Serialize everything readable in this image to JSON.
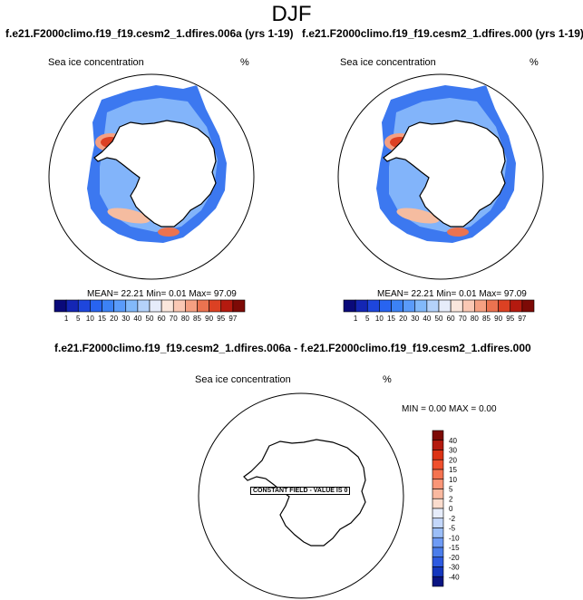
{
  "title": "DJF",
  "panels": [
    {
      "case": "f.e21.F2000climo.f19_f19.cesm2_1.dfires.006a (yrs 1-19)",
      "variable": "Sea ice concentration",
      "units": "%",
      "mean_label": "MEAN=",
      "mean": "22.21",
      "min_label": "Min=",
      "min": "0.01",
      "max_label": "Max=",
      "max": "97.09"
    },
    {
      "case": "f.e21.F2000climo.f19_f19.cesm2_1.dfires.000 (yrs 1-19)",
      "variable": "Sea ice concentration",
      "units": "%",
      "mean_label": "MEAN=",
      "mean": "22.21",
      "min_label": "Min=",
      "min": "0.01",
      "max_label": "Max=",
      "max": "97.09"
    }
  ],
  "diff": {
    "title": "f.e21.F2000climo.f19_f19.cesm2_1.dfires.006a - f.e21.F2000climo.f19_f19.cesm2_1.dfires.000",
    "variable": "Sea ice concentration",
    "units": "%",
    "min_label": "MIN =",
    "min": "0.00",
    "max_label": "MAX =",
    "max": "0.00",
    "note": "CONSTANT FIELD - VALUE IS 0"
  },
  "chart_data": [
    {
      "type": "heatmap",
      "projection": "south-polar-stereographic",
      "title": "f.e21.F2000climo.f19_f19.cesm2_1.dfires.006a (yrs 1-19)",
      "field": "Sea ice concentration",
      "units": "%",
      "colorbar_levels": [
        "1",
        "5",
        "10",
        "15",
        "20",
        "30",
        "40",
        "50",
        "60",
        "70",
        "80",
        "85",
        "90",
        "95",
        "97"
      ],
      "colorbar_colors": [
        "#0a0a7a",
        "#1426b4",
        "#1e46dc",
        "#2864f0",
        "#3c82f5",
        "#5a9bfa",
        "#82b9fa",
        "#b4d2fa",
        "#e6ecfa",
        "#fae6dc",
        "#fac8b4",
        "#f5a082",
        "#eb7350",
        "#dc4123",
        "#b41a0f",
        "#7d0a06"
      ],
      "mean": 22.21,
      "min": 0.01,
      "max": 97.09
    },
    {
      "type": "heatmap",
      "projection": "south-polar-stereographic",
      "title": "f.e21.F2000climo.f19_f19.cesm2_1.dfires.000 (yrs 1-19)",
      "field": "Sea ice concentration",
      "units": "%",
      "colorbar_levels": [
        "1",
        "5",
        "10",
        "15",
        "20",
        "30",
        "40",
        "50",
        "60",
        "70",
        "80",
        "85",
        "90",
        "95",
        "97"
      ],
      "colorbar_colors": [
        "#0a0a7a",
        "#1426b4",
        "#1e46dc",
        "#2864f0",
        "#3c82f5",
        "#5a9bfa",
        "#82b9fa",
        "#b4d2fa",
        "#e6ecfa",
        "#fae6dc",
        "#fac8b4",
        "#f5a082",
        "#eb7350",
        "#dc4123",
        "#b41a0f",
        "#7d0a06"
      ],
      "mean": 22.21,
      "min": 0.01,
      "max": 97.09
    },
    {
      "type": "heatmap",
      "projection": "south-polar-stereographic",
      "title": "f.e21.F2000climo.f19_f19.cesm2_1.dfires.006a - f.e21.F2000climo.f19_f19.cesm2_1.dfires.000",
      "field": "Sea ice concentration",
      "units": "%",
      "colorbar_levels": [
        "40",
        "30",
        "20",
        "15",
        "10",
        "5",
        "2",
        "0",
        "-2",
        "-5",
        "-10",
        "-15",
        "-20",
        "-30",
        "-40"
      ],
      "colorbar_colors": [
        "#7d0a06",
        "#b41a0f",
        "#dc3214",
        "#f0502d",
        "#f57350",
        "#fa9678",
        "#fab9a0",
        "#fadccd",
        "#e6ecfa",
        "#c3d7fa",
        "#9bbef8",
        "#6e9bf5",
        "#4b7deb",
        "#2d5ae1",
        "#1437be",
        "#0a1482"
      ],
      "min": 0.0,
      "max": 0.0
    }
  ]
}
